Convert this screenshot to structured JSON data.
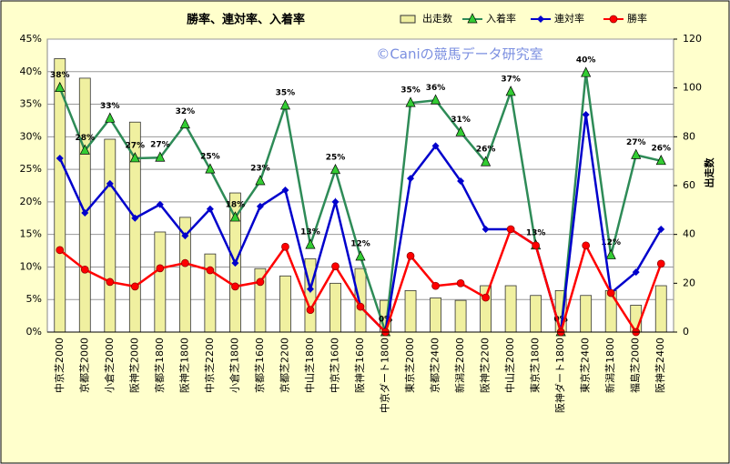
{
  "chart_data": {
    "type": "combo",
    "title": "勝率、連対率、入着率",
    "watermark": "©Caniの競馬データ研究室",
    "y2label": "出走数",
    "categories": [
      "中京芝2000",
      "京都芝2000",
      "小倉芝2000",
      "阪神芝2000",
      "京都芝1800",
      "阪神芝1800",
      "中京芝2200",
      "小倉芝1800",
      "京都芝1600",
      "京都芝2200",
      "中山芝1800",
      "中京芝1600",
      "阪神芝1600",
      "中京ダート1800",
      "東京芝2000",
      "京都芝2400",
      "新潟芝2000",
      "阪神芝2200",
      "中山芝2000",
      "東京芝1800",
      "阪神ダート1800",
      "東京芝2400",
      "新潟芝1800",
      "福島芝2000",
      "阪神芝2400"
    ],
    "series": [
      {
        "name": "出走数",
        "type": "bar",
        "axis": "y2",
        "color": "#f0f0a0",
        "values": [
          112,
          104,
          79,
          86,
          41,
          47,
          32,
          57,
          26,
          23,
          30,
          20,
          26,
          13,
          17,
          14,
          13,
          19,
          19,
          15,
          17,
          15,
          17,
          11,
          19
        ]
      },
      {
        "name": "入着率",
        "type": "line",
        "marker": "triangle",
        "color": "#2e8b57",
        "marker_color": "#33cc33",
        "values": [
          37.5,
          27.9,
          32.8,
          26.7,
          26.8,
          31.9,
          25.0,
          17.6,
          23.2,
          34.8,
          13.4,
          24.9,
          11.6,
          0,
          35.2,
          35.6,
          30.7,
          26.1,
          36.9,
          13.3,
          0,
          39.8,
          11.8,
          27.2,
          26.3
        ],
        "value_labels": [
          "38%",
          "28%",
          "33%",
          "27%",
          "27%",
          "32%",
          "25%",
          "18%",
          "23%",
          "35%",
          "13%",
          "25%",
          "12%",
          "0%",
          "35%",
          "36%",
          "31%",
          "26%",
          "37%",
          "13%",
          "0%",
          "40%",
          "12%",
          "27%",
          "26%"
        ]
      },
      {
        "name": "連対率",
        "type": "line",
        "marker": "diamond",
        "color": "#0000cc",
        "marker_color": "#0000cc",
        "values": [
          26.7,
          18.3,
          22.8,
          17.5,
          19.6,
          14.8,
          18.9,
          10.6,
          19.3,
          21.8,
          6.6,
          20.0,
          3.9,
          0,
          23.6,
          28.6,
          23.2,
          15.8,
          15.8,
          13.3,
          0,
          33.4,
          6.0,
          9.2,
          15.8
        ]
      },
      {
        "name": "勝率",
        "type": "line",
        "marker": "circle",
        "color": "#ff0000",
        "marker_color": "#ff0000",
        "values": [
          12.6,
          9.6,
          7.7,
          7.0,
          9.8,
          10.6,
          9.5,
          7.0,
          7.7,
          13.1,
          3.4,
          10.1,
          3.9,
          0,
          11.7,
          7.1,
          7.5,
          5.3,
          15.8,
          13.3,
          0,
          13.3,
          6.0,
          0,
          10.5
        ]
      }
    ],
    "ylim": [
      0,
      45
    ],
    "yticks": [
      {
        "value": 0,
        "label": "0%"
      },
      {
        "value": 5,
        "label": "5%"
      },
      {
        "value": 10,
        "label": "10%"
      },
      {
        "value": 15,
        "label": "15%"
      },
      {
        "value": 20,
        "label": "20%"
      },
      {
        "value": 25,
        "label": "25%"
      },
      {
        "value": 30,
        "label": "30%"
      },
      {
        "value": 35,
        "label": "35%"
      },
      {
        "value": 40,
        "label": "40%"
      },
      {
        "value": 45,
        "label": "45%"
      }
    ],
    "y2lim": [
      0,
      120
    ],
    "y2ticks": [
      0,
      20,
      40,
      60,
      80,
      100,
      120
    ],
    "grid": true,
    "legend": "top-right"
  }
}
